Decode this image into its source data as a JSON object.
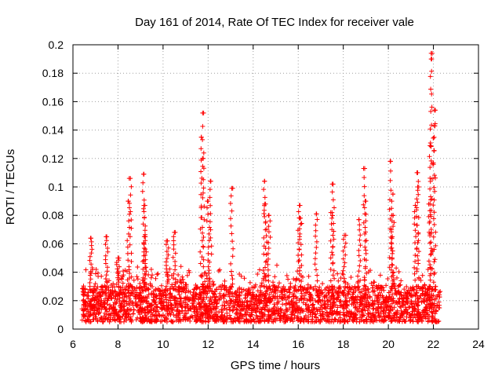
{
  "chart_data": {
    "type": "scatter",
    "title": "Day 161 of 2014, Rate Of TEC Index for receiver vale",
    "xlabel": "GPS time / hours",
    "ylabel": "ROTI / TECUs",
    "xlim": [
      6,
      24
    ],
    "ylim": [
      0,
      0.2
    ],
    "xticks": [
      6,
      8,
      10,
      12,
      14,
      16,
      18,
      20,
      22,
      24
    ],
    "yticks": [
      0,
      0.02,
      0.04,
      0.06,
      0.08,
      0.1,
      0.12,
      0.14,
      0.16,
      0.18,
      0.2
    ],
    "ytick_labels": [
      "0",
      "0.02",
      "0.04",
      "0.06",
      "0.08",
      "0.1",
      "0.12",
      "0.14",
      "0.16",
      "0.18",
      "0.2"
    ],
    "grid": true,
    "marker": "+",
    "color": "#ff0000",
    "series": [
      {
        "name": "ROTI",
        "x_range": [
          6.4,
          22.3
        ],
        "baseline_range": [
          0.005,
          0.03
        ],
        "peaks": [
          {
            "x": 6.8,
            "y": 0.064
          },
          {
            "x": 7.5,
            "y": 0.065
          },
          {
            "x": 8.0,
            "y": 0.05
          },
          {
            "x": 8.55,
            "y": 0.106
          },
          {
            "x": 8.45,
            "y": 0.09
          },
          {
            "x": 9.15,
            "y": 0.109
          },
          {
            "x": 9.15,
            "y": 0.087
          },
          {
            "x": 9.2,
            "y": 0.065
          },
          {
            "x": 10.2,
            "y": 0.062
          },
          {
            "x": 10.5,
            "y": 0.068
          },
          {
            "x": 11.8,
            "y": 0.152
          },
          {
            "x": 11.7,
            "y": 0.135
          },
          {
            "x": 11.75,
            "y": 0.12
          },
          {
            "x": 12.1,
            "y": 0.104
          },
          {
            "x": 12.0,
            "y": 0.09
          },
          {
            "x": 13.05,
            "y": 0.099
          },
          {
            "x": 14.5,
            "y": 0.104
          },
          {
            "x": 14.55,
            "y": 0.088
          },
          {
            "x": 14.7,
            "y": 0.08
          },
          {
            "x": 16.05,
            "y": 0.087
          },
          {
            "x": 16.1,
            "y": 0.078
          },
          {
            "x": 16.8,
            "y": 0.081
          },
          {
            "x": 17.55,
            "y": 0.102
          },
          {
            "x": 17.5,
            "y": 0.082
          },
          {
            "x": 18.05,
            "y": 0.066
          },
          {
            "x": 18.95,
            "y": 0.113
          },
          {
            "x": 19.0,
            "y": 0.09
          },
          {
            "x": 18.7,
            "y": 0.077
          },
          {
            "x": 20.1,
            "y": 0.118
          },
          {
            "x": 20.2,
            "y": 0.095
          },
          {
            "x": 20.15,
            "y": 0.08
          },
          {
            "x": 21.3,
            "y": 0.11
          },
          {
            "x": 21.3,
            "y": 0.1
          },
          {
            "x": 21.2,
            "y": 0.087
          },
          {
            "x": 21.9,
            "y": 0.194
          },
          {
            "x": 21.9,
            "y": 0.19
          },
          {
            "x": 22.05,
            "y": 0.154
          },
          {
            "x": 22.05,
            "y": 0.143
          },
          {
            "x": 21.85,
            "y": 0.129
          },
          {
            "x": 21.85,
            "y": 0.088
          }
        ]
      }
    ]
  }
}
